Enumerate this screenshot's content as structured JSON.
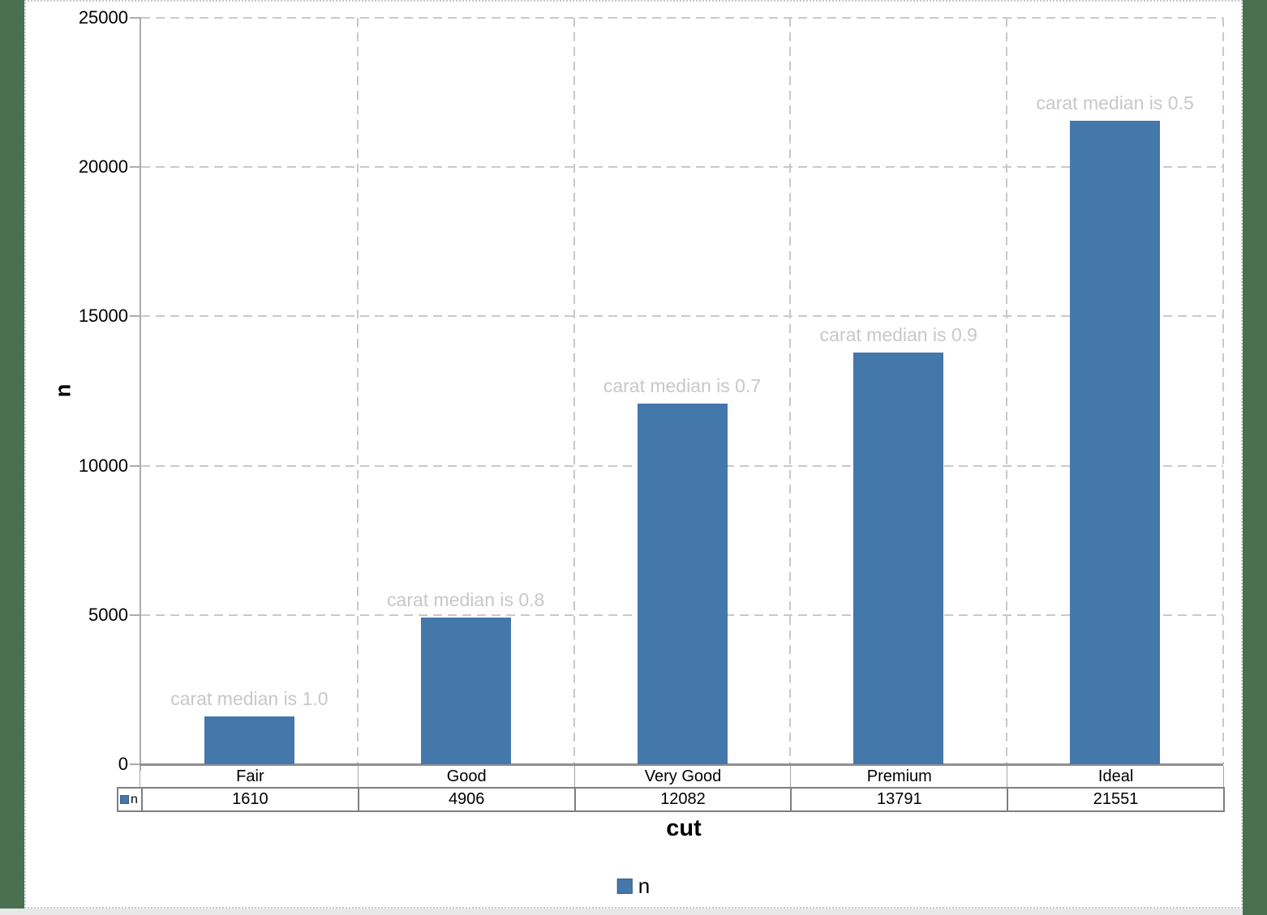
{
  "chart_data": {
    "type": "bar",
    "title": "",
    "xlabel": "cut",
    "ylabel": "n",
    "categories": [
      "Fair",
      "Good",
      "Very Good",
      "Premium",
      "Ideal"
    ],
    "series": [
      {
        "name": "n",
        "values": [
          1610,
          4906,
          12082,
          13791,
          21551
        ]
      }
    ],
    "bar_annotations": [
      "carat median is 1.0",
      "carat median is 0.8",
      "carat median is 0.7",
      "carat median is 0.9",
      "carat median is 0.5"
    ],
    "ylim": [
      0,
      25000
    ],
    "yticks": [
      0,
      5000,
      10000,
      15000,
      20000,
      25000
    ],
    "grid": "dashed",
    "legend": {
      "position": "bottom",
      "label": "n"
    },
    "data_table": {
      "row_label": "n",
      "values": [
        "1610",
        "4906",
        "12082",
        "13791",
        "21551"
      ]
    },
    "colors": {
      "bar": "#4477AA",
      "bar_border": "#35618D",
      "annotation_text": "#C8C8C8",
      "gridline": "#C9C9C9",
      "y_axis": "#ACACAC",
      "x_axis": "#8F8F8F",
      "table_border_dark": "#7F7F7F",
      "table_border_light": "#A6A6A6",
      "text": "#000000",
      "desktop_background": "#49704F",
      "panel_background": "#FFFFFF",
      "panel_border": "#C9C9C9",
      "bottom_strip": "#E8E8E8"
    }
  }
}
